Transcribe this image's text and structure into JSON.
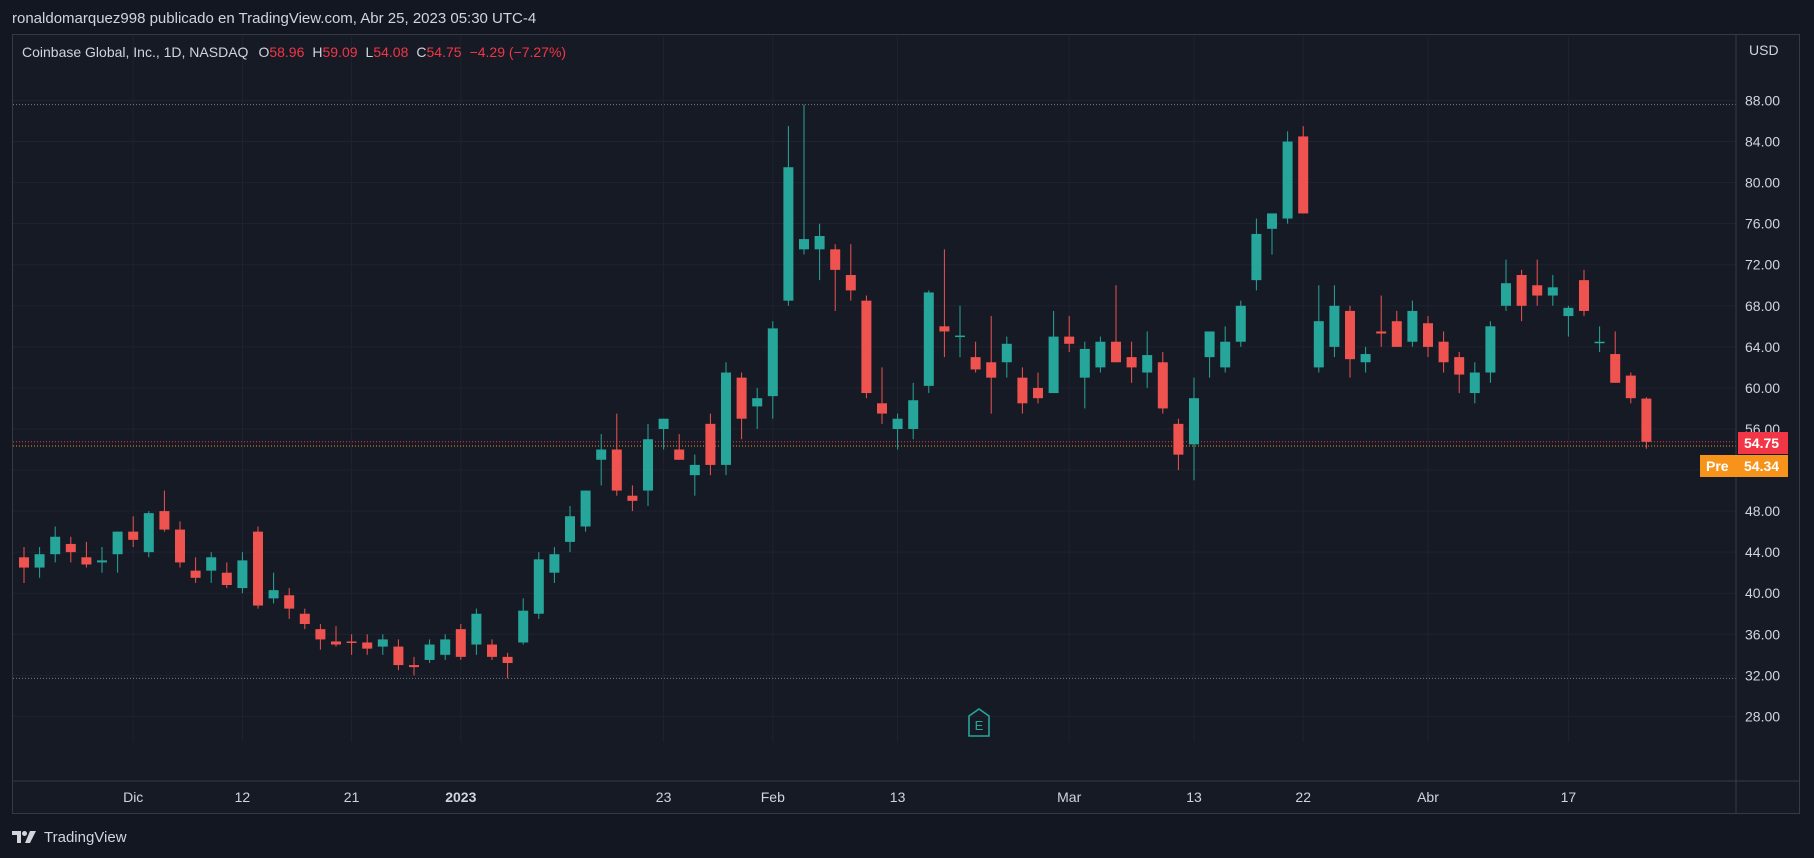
{
  "header": {
    "publish_line": "ronaldomarquez998 publicado en TradingView.com, Abr 25, 2023 05:30 UTC-4"
  },
  "legend": {
    "symbol": "Coinbase Global, Inc., 1D, NASDAQ",
    "o_label": "O",
    "o_value": "58.96",
    "h_label": "H",
    "h_value": "59.09",
    "l_label": "L",
    "l_value": "54.08",
    "c_label": "C",
    "c_value": "54.75",
    "change": "−4.29 (−7.27%)"
  },
  "price_tags": {
    "last": "54.75",
    "pre_label": "Pre",
    "pre_value": "54.34"
  },
  "footer": {
    "brand": "TradingView"
  },
  "earnings_marker": {
    "letter": "E"
  },
  "colors": {
    "up": "#26a69a",
    "down": "#ef5350",
    "background": "#131722",
    "grid": "#1f2330",
    "text": "#d1d4dc",
    "pre": "#f7931a"
  },
  "chart_data": {
    "type": "candlestick",
    "title": "Coinbase Global, Inc., 1D, NASDAQ",
    "currency": "USD",
    "ylim": [
      24,
      92
    ],
    "y_ticks": [
      "88.00",
      "84.00",
      "80.00",
      "76.00",
      "72.00",
      "68.00",
      "64.00",
      "60.00",
      "56.00",
      "52.00",
      "48.00",
      "44.00",
      "40.00",
      "36.00",
      "32.00",
      "28.00"
    ],
    "x_ticks": [
      {
        "label": "Dic",
        "index": 7
      },
      {
        "label": "12",
        "index": 14
      },
      {
        "label": "21",
        "index": 21
      },
      {
        "label": "2023",
        "index": 28,
        "bold": true
      },
      {
        "label": "23",
        "index": 41
      },
      {
        "label": "Feb",
        "index": 48
      },
      {
        "label": "13",
        "index": 56
      },
      {
        "label": "Mar",
        "index": 67
      },
      {
        "label": "13",
        "index": 75
      },
      {
        "label": "22",
        "index": 82
      },
      {
        "label": "Abr",
        "index": 90
      },
      {
        "label": "17",
        "index": 99
      }
    ],
    "reference_lines": [
      87.6,
      31.7,
      54.75,
      54.34
    ],
    "candles": [
      {
        "o": 43.5,
        "h": 44.5,
        "l": 41.0,
        "c": 42.5
      },
      {
        "o": 42.5,
        "h": 44.5,
        "l": 41.5,
        "c": 43.8
      },
      {
        "o": 43.8,
        "h": 46.5,
        "l": 43.0,
        "c": 45.5
      },
      {
        "o": 44.8,
        "h": 45.5,
        "l": 43.0,
        "c": 44.0
      },
      {
        "o": 43.5,
        "h": 45.0,
        "l": 42.5,
        "c": 42.8
      },
      {
        "o": 43.0,
        "h": 44.5,
        "l": 42.0,
        "c": 43.2
      },
      {
        "o": 43.8,
        "h": 46.0,
        "l": 42.0,
        "c": 46.0
      },
      {
        "o": 46.0,
        "h": 47.5,
        "l": 44.5,
        "c": 45.2
      },
      {
        "o": 44.0,
        "h": 48.0,
        "l": 43.5,
        "c": 47.8
      },
      {
        "o": 48.0,
        "h": 50.0,
        "l": 46.0,
        "c": 46.2
      },
      {
        "o": 46.2,
        "h": 47.0,
        "l": 42.5,
        "c": 43.0
      },
      {
        "o": 42.2,
        "h": 43.5,
        "l": 41.0,
        "c": 41.5
      },
      {
        "o": 42.2,
        "h": 44.0,
        "l": 41.0,
        "c": 43.5
      },
      {
        "o": 42.0,
        "h": 43.0,
        "l": 40.5,
        "c": 40.8
      },
      {
        "o": 40.5,
        "h": 44.0,
        "l": 40.0,
        "c": 43.2
      },
      {
        "o": 46.0,
        "h": 46.5,
        "l": 38.5,
        "c": 38.8
      },
      {
        "o": 39.5,
        "h": 42.0,
        "l": 39.0,
        "c": 40.3
      },
      {
        "o": 39.8,
        "h": 40.5,
        "l": 37.5,
        "c": 38.5
      },
      {
        "o": 38.0,
        "h": 38.5,
        "l": 36.5,
        "c": 37.0
      },
      {
        "o": 36.5,
        "h": 37.0,
        "l": 34.5,
        "c": 35.5
      },
      {
        "o": 35.3,
        "h": 36.8,
        "l": 34.8,
        "c": 35.0
      },
      {
        "o": 35.3,
        "h": 36.0,
        "l": 34.0,
        "c": 35.2
      },
      {
        "o": 35.2,
        "h": 36.0,
        "l": 34.0,
        "c": 34.6
      },
      {
        "o": 34.8,
        "h": 36.0,
        "l": 34.0,
        "c": 35.5
      },
      {
        "o": 34.8,
        "h": 35.5,
        "l": 32.5,
        "c": 33.0
      },
      {
        "o": 33.0,
        "h": 33.8,
        "l": 32.0,
        "c": 32.8
      },
      {
        "o": 33.5,
        "h": 35.5,
        "l": 33.2,
        "c": 35.0
      },
      {
        "o": 34.0,
        "h": 36.0,
        "l": 33.5,
        "c": 35.5
      },
      {
        "o": 36.5,
        "h": 37.0,
        "l": 33.5,
        "c": 33.8
      },
      {
        "o": 35.0,
        "h": 38.5,
        "l": 34.0,
        "c": 38.0
      },
      {
        "o": 35.0,
        "h": 35.5,
        "l": 33.5,
        "c": 33.8
      },
      {
        "o": 33.8,
        "h": 34.2,
        "l": 31.7,
        "c": 33.2
      },
      {
        "o": 35.2,
        "h": 39.5,
        "l": 35.0,
        "c": 38.3
      },
      {
        "o": 38.0,
        "h": 44.0,
        "l": 37.5,
        "c": 43.3
      },
      {
        "o": 42.0,
        "h": 44.5,
        "l": 41.0,
        "c": 43.8
      },
      {
        "o": 45.0,
        "h": 48.5,
        "l": 44.0,
        "c": 47.5
      },
      {
        "o": 46.5,
        "h": 50.0,
        "l": 46.0,
        "c": 50.0
      },
      {
        "o": 53.0,
        "h": 55.5,
        "l": 50.5,
        "c": 54.0
      },
      {
        "o": 54.0,
        "h": 57.5,
        "l": 49.5,
        "c": 50.0
      },
      {
        "o": 49.5,
        "h": 50.5,
        "l": 48.0,
        "c": 49.0
      },
      {
        "o": 50.0,
        "h": 56.5,
        "l": 48.5,
        "c": 55.0
      },
      {
        "o": 56.0,
        "h": 57.0,
        "l": 54.0,
        "c": 57.0
      },
      {
        "o": 54.0,
        "h": 55.5,
        "l": 53.0,
        "c": 53.0
      },
      {
        "o": 51.5,
        "h": 53.5,
        "l": 49.5,
        "c": 52.5
      },
      {
        "o": 56.5,
        "h": 57.5,
        "l": 51.5,
        "c": 52.5
      },
      {
        "o": 52.5,
        "h": 62.5,
        "l": 51.5,
        "c": 61.5
      },
      {
        "o": 61.0,
        "h": 61.5,
        "l": 55.0,
        "c": 57.0
      },
      {
        "o": 58.2,
        "h": 60.0,
        "l": 56.0,
        "c": 59.0
      },
      {
        "o": 59.2,
        "h": 66.5,
        "l": 57.0,
        "c": 65.8
      },
      {
        "o": 68.5,
        "h": 85.5,
        "l": 68.0,
        "c": 81.5
      },
      {
        "o": 73.5,
        "h": 87.6,
        "l": 73.0,
        "c": 74.5
      },
      {
        "o": 73.5,
        "h": 76.0,
        "l": 70.5,
        "c": 74.8
      },
      {
        "o": 73.5,
        "h": 74.0,
        "l": 67.5,
        "c": 71.5
      },
      {
        "o": 71.0,
        "h": 74.0,
        "l": 68.5,
        "c": 69.5
      },
      {
        "o": 68.5,
        "h": 69.0,
        "l": 59.0,
        "c": 59.5
      },
      {
        "o": 58.5,
        "h": 62.0,
        "l": 56.5,
        "c": 57.5
      },
      {
        "o": 56.0,
        "h": 57.5,
        "l": 54.0,
        "c": 57.0
      },
      {
        "o": 56.0,
        "h": 60.5,
        "l": 55.0,
        "c": 58.8
      },
      {
        "o": 60.2,
        "h": 69.5,
        "l": 59.5,
        "c": 69.3
      },
      {
        "o": 66.0,
        "h": 73.5,
        "l": 63.0,
        "c": 65.5
      },
      {
        "o": 65.0,
        "h": 68.0,
        "l": 63.0,
        "c": 65.1
      },
      {
        "o": 63.0,
        "h": 64.5,
        "l": 61.5,
        "c": 61.8
      },
      {
        "o": 62.5,
        "h": 67.0,
        "l": 57.5,
        "c": 61.0
      },
      {
        "o": 62.5,
        "h": 65.0,
        "l": 61.0,
        "c": 64.3
      },
      {
        "o": 61.0,
        "h": 62.0,
        "l": 57.5,
        "c": 58.5
      },
      {
        "o": 60.0,
        "h": 61.5,
        "l": 58.5,
        "c": 59.0
      },
      {
        "o": 59.5,
        "h": 67.5,
        "l": 59.5,
        "c": 65.0
      },
      {
        "o": 65.0,
        "h": 67.0,
        "l": 63.5,
        "c": 64.3
      },
      {
        "o": 61.0,
        "h": 64.5,
        "l": 58.0,
        "c": 63.8
      },
      {
        "o": 62.0,
        "h": 65.0,
        "l": 61.5,
        "c": 64.5
      },
      {
        "o": 64.5,
        "h": 70.0,
        "l": 62.5,
        "c": 62.5
      },
      {
        "o": 63.0,
        "h": 64.5,
        "l": 60.5,
        "c": 62.0
      },
      {
        "o": 61.5,
        "h": 65.5,
        "l": 60.0,
        "c": 63.2
      },
      {
        "o": 62.5,
        "h": 63.5,
        "l": 57.5,
        "c": 58.0
      },
      {
        "o": 56.5,
        "h": 57.0,
        "l": 52.0,
        "c": 53.5
      },
      {
        "o": 54.5,
        "h": 61.0,
        "l": 51.0,
        "c": 59.0
      },
      {
        "o": 63.0,
        "h": 65.0,
        "l": 61.0,
        "c": 65.5
      },
      {
        "o": 62.0,
        "h": 66.0,
        "l": 61.5,
        "c": 64.5
      },
      {
        "o": 64.5,
        "h": 68.5,
        "l": 64.0,
        "c": 68.0
      },
      {
        "o": 70.5,
        "h": 76.5,
        "l": 69.5,
        "c": 75.0
      },
      {
        "o": 75.5,
        "h": 77.0,
        "l": 73.0,
        "c": 77.0
      },
      {
        "o": 76.5,
        "h": 85.0,
        "l": 76.0,
        "c": 84.0
      },
      {
        "o": 84.5,
        "h": 85.5,
        "l": 77.0,
        "c": 77.0
      },
      {
        "o": 62.0,
        "h": 70.0,
        "l": 61.5,
        "c": 66.5
      },
      {
        "o": 64.0,
        "h": 70.0,
        "l": 63.0,
        "c": 68.0
      },
      {
        "o": 67.5,
        "h": 68.0,
        "l": 61.0,
        "c": 62.8
      },
      {
        "o": 62.5,
        "h": 64.0,
        "l": 61.5,
        "c": 63.3
      },
      {
        "o": 65.5,
        "h": 69.0,
        "l": 64.0,
        "c": 65.3
      },
      {
        "o": 66.5,
        "h": 67.5,
        "l": 64.0,
        "c": 64.0
      },
      {
        "o": 64.5,
        "h": 68.5,
        "l": 64.0,
        "c": 67.5
      },
      {
        "o": 66.3,
        "h": 67.0,
        "l": 63.0,
        "c": 64.0
      },
      {
        "o": 64.5,
        "h": 65.5,
        "l": 61.5,
        "c": 62.5
      },
      {
        "o": 63.0,
        "h": 63.5,
        "l": 59.5,
        "c": 61.3
      },
      {
        "o": 59.5,
        "h": 62.5,
        "l": 58.5,
        "c": 61.5
      },
      {
        "o": 61.5,
        "h": 66.5,
        "l": 60.5,
        "c": 66.0
      },
      {
        "o": 68.0,
        "h": 72.5,
        "l": 67.5,
        "c": 70.2
      },
      {
        "o": 71.0,
        "h": 71.5,
        "l": 66.5,
        "c": 68.0
      },
      {
        "o": 70.0,
        "h": 72.5,
        "l": 68.0,
        "c": 69.0
      },
      {
        "o": 69.0,
        "h": 71.0,
        "l": 68.0,
        "c": 69.8
      },
      {
        "o": 67.0,
        "h": 68.0,
        "l": 65.0,
        "c": 67.8
      },
      {
        "o": 70.5,
        "h": 71.5,
        "l": 67.0,
        "c": 67.5
      },
      {
        "o": 64.5,
        "h": 66.0,
        "l": 63.5,
        "c": 64.5
      },
      {
        "o": 63.3,
        "h": 65.5,
        "l": 60.5,
        "c": 60.5
      },
      {
        "o": 61.2,
        "h": 61.5,
        "l": 58.5,
        "c": 59.0
      },
      {
        "o": 58.96,
        "h": 59.09,
        "l": 54.08,
        "c": 54.75
      }
    ]
  }
}
